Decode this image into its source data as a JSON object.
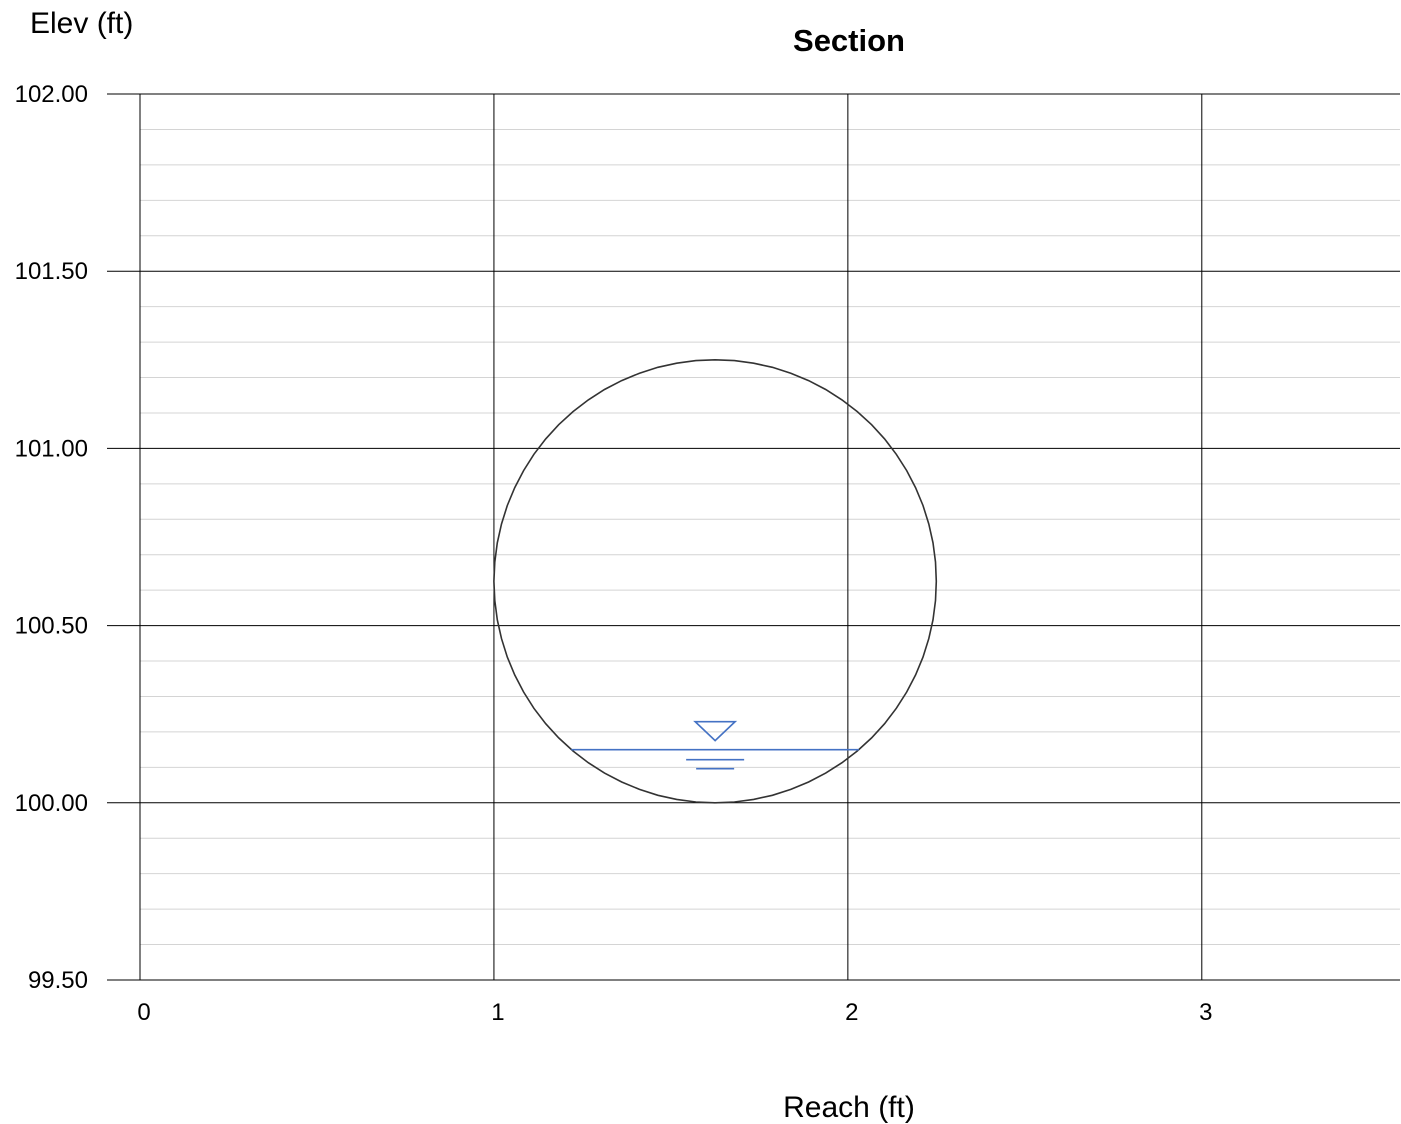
{
  "chart_data": {
    "type": "line",
    "title": "Section",
    "xlabel": "Reach (ft)",
    "ylabel": "Elev (ft)",
    "xlim": [
      0,
      3.56
    ],
    "ylim": [
      99.5,
      102.0
    ],
    "x_ticks": [
      0,
      1,
      2,
      3
    ],
    "x_tick_labels": [
      "0",
      "1",
      "2",
      "3"
    ],
    "y_ticks": [
      99.5,
      100.0,
      100.5,
      101.0,
      101.5,
      102.0
    ],
    "y_tick_labels": [
      "99.50",
      "100.00",
      "100.50",
      "101.00",
      "101.50",
      "102.00"
    ],
    "y_minor_step": 0.1,
    "grid": true,
    "series": [
      {
        "role": "pipe-section",
        "color": "#333333",
        "shape": "circle",
        "center_x": 1.625,
        "center_y": 100.625,
        "diameter": 1.25
      },
      {
        "role": "water-surface",
        "color": "#4472c4",
        "elevation": 100.15
      }
    ]
  }
}
